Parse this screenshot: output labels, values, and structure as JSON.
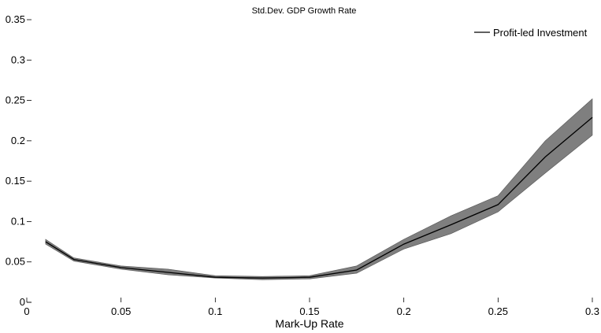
{
  "chart_data": {
    "type": "line",
    "title": "Std.Dev. GDP Growth Rate",
    "xlabel": "Mark-Up Rate",
    "ylabel": "",
    "xlim": [
      0,
      0.3
    ],
    "ylim": [
      0,
      0.35
    ],
    "x_ticks": [
      0,
      0.05,
      0.1,
      0.15,
      0.2,
      0.25,
      0.3
    ],
    "x_tick_labels": [
      "0",
      "0.05",
      "0.1",
      "0.15",
      "0.2",
      "0.25",
      "0.3"
    ],
    "y_ticks": [
      0,
      0.05,
      0.1,
      0.15,
      0.2,
      0.25,
      0.3,
      0.35
    ],
    "y_tick_labels": [
      "0",
      "0.05",
      "0.1",
      "0.15",
      "0.2",
      "0.25",
      "0.3",
      "0.35"
    ],
    "grid": false,
    "legend": {
      "position": "top-right",
      "entries": [
        "Profit-led Investment"
      ]
    },
    "series": [
      {
        "name": "Profit-led Investment",
        "color": "#000000",
        "x": [
          0.01,
          0.025,
          0.05,
          0.075,
          0.1,
          0.125,
          0.15,
          0.175,
          0.2,
          0.225,
          0.25,
          0.275,
          0.3
        ],
        "y": [
          0.075,
          0.053,
          0.043,
          0.037,
          0.031,
          0.03,
          0.031,
          0.04,
          0.072,
          0.096,
          0.121,
          0.18,
          0.229
        ],
        "band_lower": [
          0.072,
          0.051,
          0.041,
          0.034,
          0.03,
          0.028,
          0.029,
          0.036,
          0.066,
          0.085,
          0.112,
          0.16,
          0.207
        ],
        "band_upper": [
          0.078,
          0.055,
          0.045,
          0.041,
          0.033,
          0.032,
          0.033,
          0.045,
          0.078,
          0.107,
          0.132,
          0.2,
          0.252
        ],
        "band_color": "#7f7f7f"
      }
    ]
  }
}
